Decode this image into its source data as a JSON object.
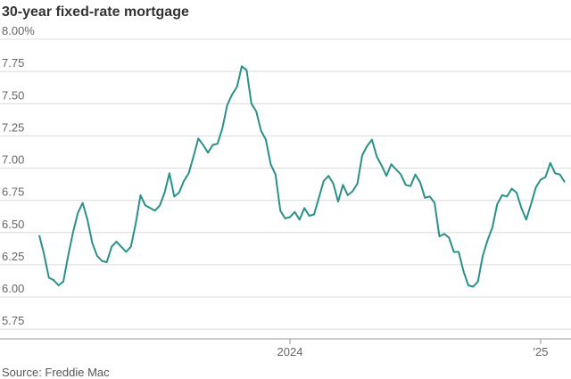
{
  "chart_data": {
    "type": "line",
    "title": "30-year fixed-rate mortgage",
    "source": "Source: Freddie Mac",
    "color": "#2a9189",
    "grid": true,
    "ylim": [
      5.675,
      8.0
    ],
    "yticks": [
      {
        "value": 8,
        "label": "8.00%"
      },
      7.75,
      {
        "value": 7.5,
        "label": "7.50"
      },
      7.25,
      {
        "value": 7,
        "label": "7.00"
      },
      6.75,
      {
        "value": 6.5,
        "label": "6.50"
      },
      6.25,
      {
        "value": 6,
        "label": "6.00"
      },
      5.75
    ],
    "categories": [
      null,
      null,
      null,
      null,
      null,
      null,
      null,
      null,
      null,
      null,
      null,
      null,
      null,
      null,
      null,
      null,
      null,
      null,
      null,
      null,
      null,
      null,
      null,
      null,
      null,
      null,
      null,
      null,
      null,
      null,
      null,
      null,
      null,
      null,
      null,
      null,
      null,
      null,
      null,
      null,
      null,
      null,
      null,
      null,
      null,
      null,
      null,
      null,
      null,
      null,
      null,
      null,
      "2024",
      null,
      null,
      null,
      null,
      null,
      null,
      null,
      null,
      null,
      null,
      null,
      null,
      null,
      null,
      null,
      null,
      null,
      null,
      null,
      null,
      null,
      null,
      null,
      null,
      null,
      null,
      null,
      null,
      null,
      null,
      null,
      null,
      null,
      null,
      null,
      null,
      null,
      null,
      null,
      null,
      null,
      null,
      null,
      null,
      null,
      null,
      null,
      null,
      null,
      null,
      null,
      "'25",
      null,
      null,
      null,
      null,
      null
    ],
    "values": [
      6.48,
      6.33,
      6.15,
      6.13,
      6.09,
      6.12,
      6.32,
      6.5,
      6.65,
      6.73,
      6.6,
      6.42,
      6.32,
      6.28,
      6.27,
      6.39,
      6.43,
      6.39,
      6.35,
      6.39,
      6.57,
      6.79,
      6.71,
      6.69,
      6.67,
      6.71,
      6.81,
      6.96,
      6.78,
      6.81,
      6.9,
      6.96,
      7.09,
      7.23,
      7.18,
      7.12,
      7.18,
      7.19,
      7.31,
      7.49,
      7.57,
      7.63,
      7.79,
      7.76,
      7.5,
      7.44,
      7.29,
      7.22,
      7.03,
      6.95,
      6.67,
      6.61,
      6.62,
      6.66,
      6.6,
      6.69,
      6.63,
      6.64,
      6.77,
      6.9,
      6.94,
      6.88,
      6.74,
      6.87,
      6.79,
      6.82,
      6.88,
      7.1,
      7.17,
      7.22,
      7.09,
      7.02,
      6.94,
      7.03,
      6.99,
      6.95,
      6.87,
      6.86,
      6.95,
      6.89,
      6.77,
      6.78,
      6.73,
      6.47,
      6.49,
      6.46,
      6.35,
      6.35,
      6.2,
      6.09,
      6.08,
      6.12,
      6.32,
      6.44,
      6.54,
      6.72,
      6.79,
      6.78,
      6.84,
      6.81,
      6.69,
      6.6,
      6.72,
      6.85,
      6.91,
      6.93,
      7.04,
      6.96,
      6.95,
      6.89
    ]
  }
}
